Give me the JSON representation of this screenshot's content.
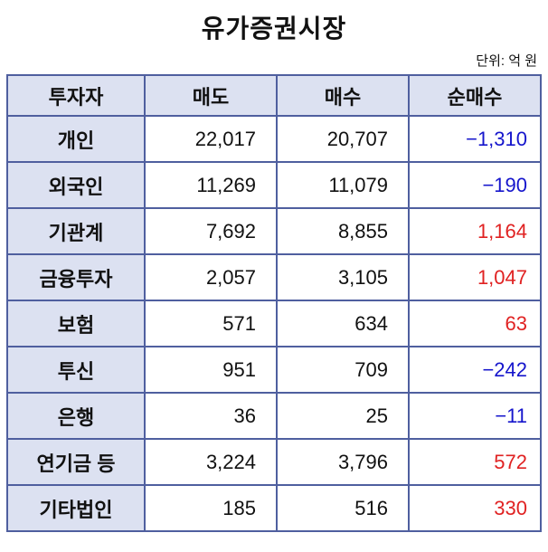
{
  "title": "유가증권시장",
  "unit_label": "단위: 억 원",
  "colors": {
    "border": "#4f5f9f",
    "header_bg": "#dce1f1",
    "negative": "#1515cc",
    "positive": "#e02222"
  },
  "chart_data": {
    "type": "table",
    "title": "유가증권시장",
    "unit": "억 원",
    "columns": [
      "투자자",
      "매도",
      "매수",
      "순매수"
    ],
    "rows": [
      {
        "investor": "개인",
        "sell": "22,017",
        "buy": "20,707",
        "net": "−1,310"
      },
      {
        "investor": "외국인",
        "sell": "11,269",
        "buy": "11,079",
        "net": "−190"
      },
      {
        "investor": "기관계",
        "sell": "7,692",
        "buy": "8,855",
        "net": "1,164"
      },
      {
        "investor": "금융투자",
        "sell": "2,057",
        "buy": "3,105",
        "net": "1,047"
      },
      {
        "investor": "보험",
        "sell": "571",
        "buy": "634",
        "net": "63"
      },
      {
        "investor": "투신",
        "sell": "951",
        "buy": "709",
        "net": "−242"
      },
      {
        "investor": "은행",
        "sell": "36",
        "buy": "25",
        "net": "−11"
      },
      {
        "investor": "연기금 등",
        "sell": "3,224",
        "buy": "3,796",
        "net": "572"
      },
      {
        "investor": "기타법인",
        "sell": "185",
        "buy": "516",
        "net": "330"
      }
    ]
  }
}
